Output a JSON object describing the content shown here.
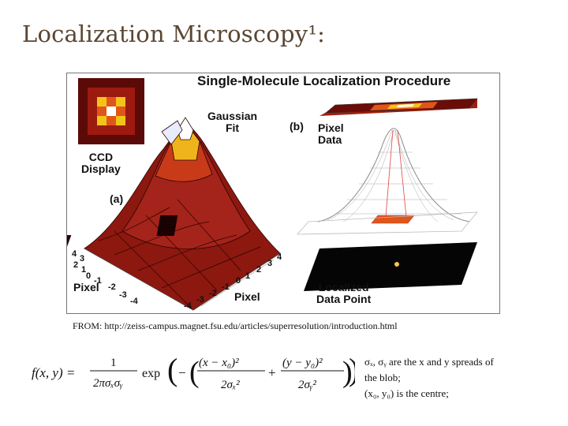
{
  "slide": {
    "title": "Localization Microscopy¹:",
    "source_note": "FROM: http://zeiss-campus.magnet.fsu.edu/articles/superresolution/introduction.html"
  },
  "figure": {
    "title": "Single-Molecule Localization Procedure",
    "labels": {
      "gaussian_fit_1": "Gaussian",
      "gaussian_fit_2": "Fit",
      "panel_b": "(b)",
      "pixel_data_1": "Pixel",
      "pixel_data_2": "Data",
      "ccd_1": "CCD",
      "ccd_2": "Display",
      "panel_a": "(a)",
      "axis_pixel_left": "Pixel",
      "axis_pixel_right": "Pixel",
      "localized_1": "Localized",
      "localized_2": "Data Point"
    },
    "axis_ticks_left": [
      "4",
      "3",
      "2",
      "1",
      "0",
      "-1",
      "-2",
      "-3",
      "-4"
    ],
    "axis_ticks_right": [
      "-4",
      "-3",
      "-2",
      "-1",
      "0",
      "1",
      "2",
      "3",
      "4"
    ],
    "colors": {
      "dark_red": "#5c0a08",
      "red": "#9c1a10",
      "orange": "#e0561a",
      "yellow": "#f2c418",
      "white_peak": "#ffffff"
    }
  },
  "formula": {
    "lhs": "f(x, y) =",
    "numerator": "1",
    "denominator": "2πσₓσᵧ",
    "exp": "exp",
    "term1_num": "(x − x₀)²",
    "term1_den": "2σₓ²",
    "plus": "+",
    "term2_num": "(y − y₀)²",
    "term2_den": "2σᵧ²"
  },
  "notes": {
    "line1": "σₓ, σᵧ are the x and y spreads of",
    "line2": "the blob;",
    "line3": "(x₀, y₀) is the centre;"
  }
}
